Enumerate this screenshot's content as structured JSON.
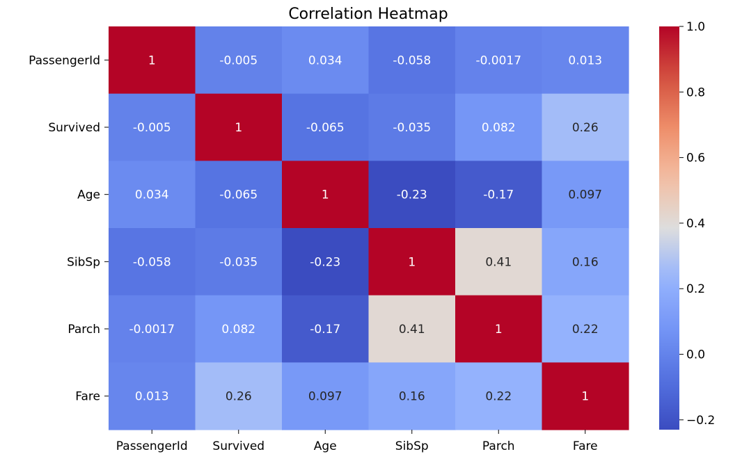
{
  "chart_data": {
    "type": "heatmap",
    "title": "Correlation Heatmap",
    "xlabel": "",
    "ylabel": "",
    "x_categories": [
      "PassengerId",
      "Survived",
      "Age",
      "SibSp",
      "Parch",
      "Fare"
    ],
    "y_categories": [
      "PassengerId",
      "Survived",
      "Age",
      "SibSp",
      "Parch",
      "Fare"
    ],
    "values": [
      [
        1,
        -0.005,
        0.034,
        -0.058,
        -0.0017,
        0.013
      ],
      [
        -0.005,
        1,
        -0.065,
        -0.035,
        0.082,
        0.26
      ],
      [
        0.034,
        -0.065,
        1,
        -0.23,
        -0.17,
        0.097
      ],
      [
        -0.058,
        -0.035,
        -0.23,
        1,
        0.41,
        0.16
      ],
      [
        -0.0017,
        0.082,
        -0.17,
        0.41,
        1,
        0.22
      ],
      [
        0.013,
        0.26,
        0.097,
        0.16,
        0.22,
        1
      ]
    ],
    "cell_labels": [
      [
        "1",
        "-0.005",
        "0.034",
        "-0.058",
        "-0.0017",
        "0.013"
      ],
      [
        "-0.005",
        "1",
        "-0.065",
        "-0.035",
        "0.082",
        "0.26"
      ],
      [
        "0.034",
        "-0.065",
        "1",
        "-0.23",
        "-0.17",
        "0.097"
      ],
      [
        "-0.058",
        "-0.035",
        "-0.23",
        "1",
        "0.41",
        "0.16"
      ],
      [
        "-0.0017",
        "0.082",
        "-0.17",
        "0.41",
        "1",
        "0.22"
      ],
      [
        "0.013",
        "0.26",
        "0.097",
        "0.16",
        "0.22",
        "1"
      ]
    ],
    "colormap": "coolwarm",
    "color_range": [
      -0.23,
      1.0
    ],
    "colorbar_ticks": [
      -0.2,
      0.0,
      0.2,
      0.4,
      0.6,
      0.8,
      1.0
    ],
    "colorbar_tick_labels": [
      "−0.2",
      "0.0",
      "0.2",
      "0.4",
      "0.6",
      "0.8",
      "1.0"
    ],
    "grid": false,
    "colorbar_position": "right"
  }
}
